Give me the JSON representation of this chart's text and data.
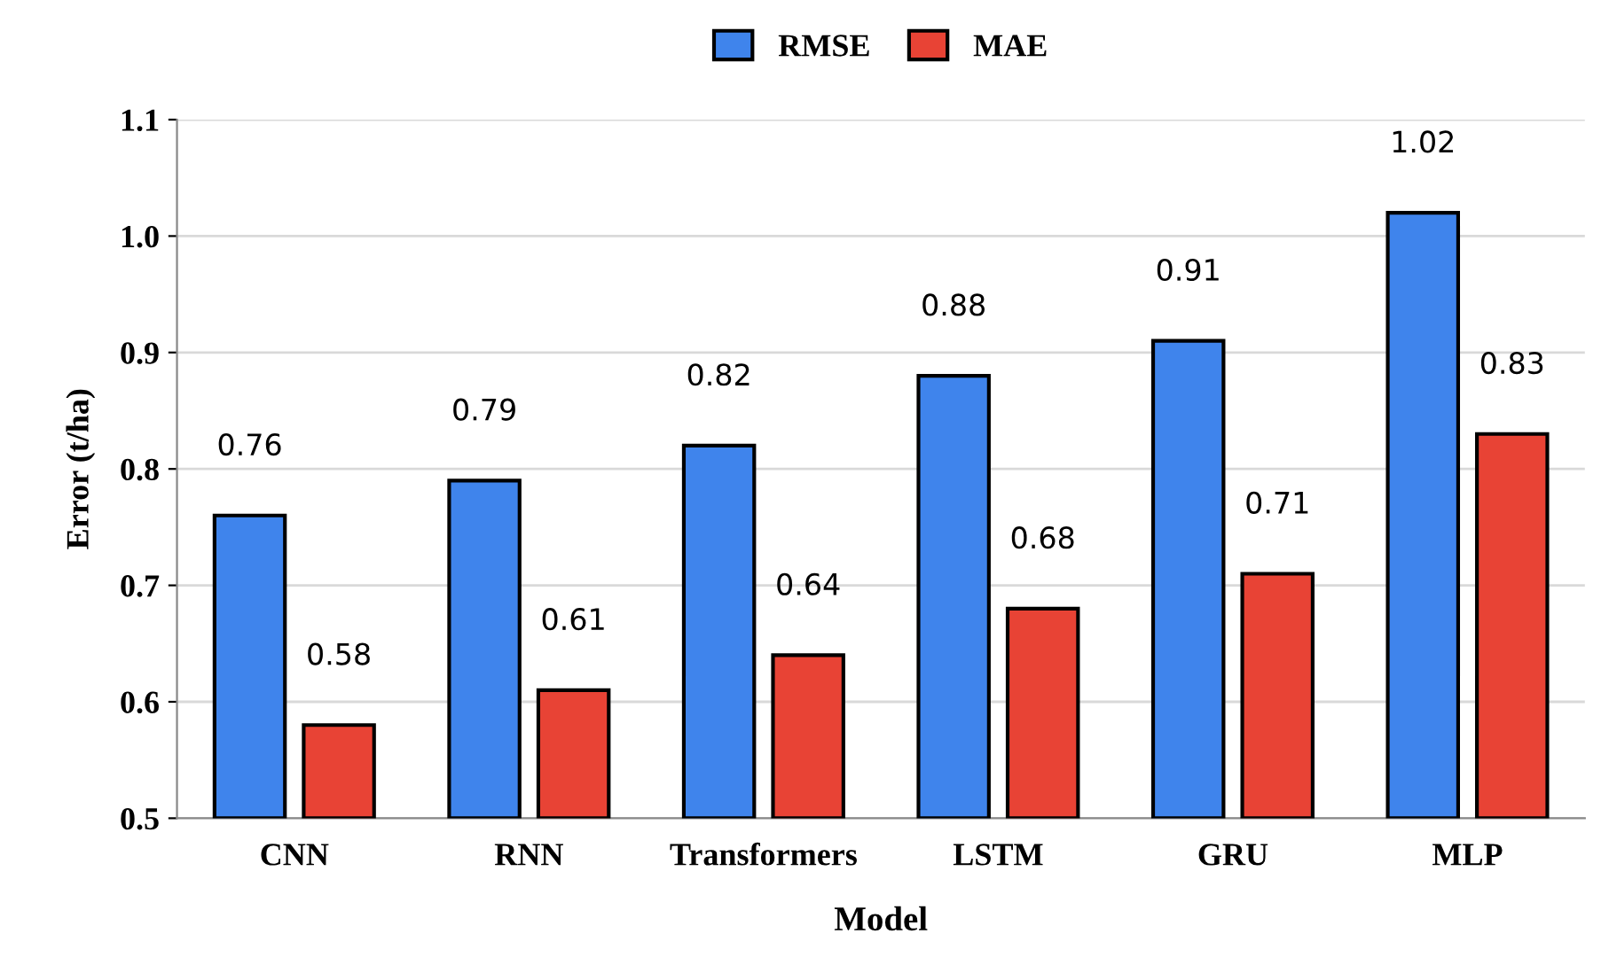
{
  "chart_data": {
    "type": "bar",
    "xlabel": "Model",
    "ylabel": "Error (t/ha)",
    "categories": [
      "CNN",
      "RNN",
      "Transformers",
      "LSTM",
      "GRU",
      "MLP"
    ],
    "series": [
      {
        "name": "RMSE",
        "color": "#3f84ec",
        "values": [
          0.76,
          0.79,
          0.82,
          0.88,
          0.91,
          1.02
        ]
      },
      {
        "name": "MAE",
        "color": "#e84335",
        "values": [
          0.58,
          0.61,
          0.64,
          0.68,
          0.71,
          0.83
        ]
      }
    ],
    "ylim": [
      0.5,
      1.1
    ],
    "yticks": [
      0.5,
      0.6,
      0.7,
      0.8,
      0.9,
      {
        "value": 1.0,
        "label": "1.0"
      },
      1.1
    ],
    "grid": "y",
    "legend": "top",
    "data_labels": true
  }
}
